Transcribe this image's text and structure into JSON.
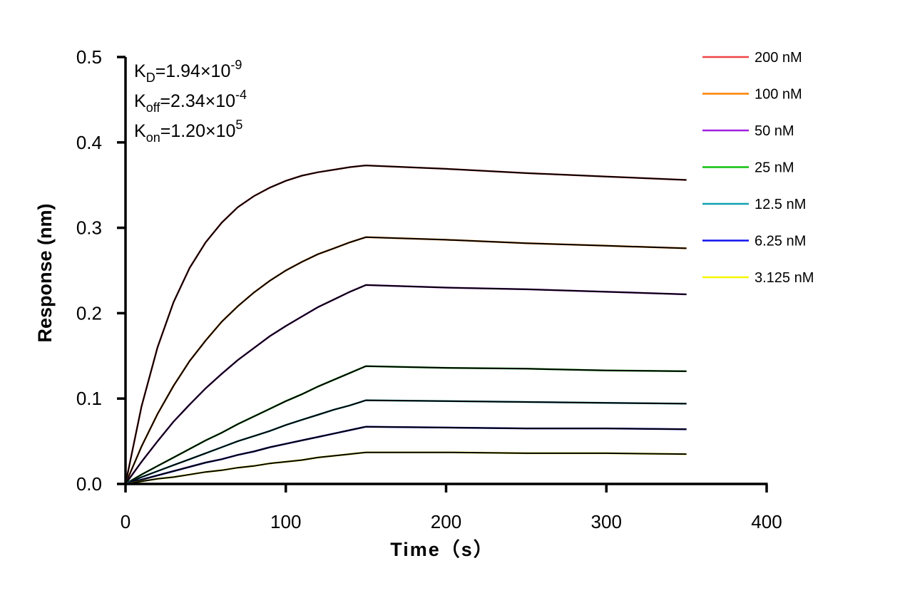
{
  "chart_data": {
    "type": "line",
    "title": "",
    "xlabel": "Time（s）",
    "ylabel": "Response (nm)",
    "xlim": [
      0,
      400
    ],
    "ylim": [
      0,
      0.5
    ],
    "x_ticks": [
      "0",
      "100",
      "200",
      "300",
      "400"
    ],
    "y_ticks": [
      "0.0",
      "0.1",
      "0.2",
      "0.3",
      "0.4",
      "0.5"
    ],
    "grid": false,
    "legend_position": "top-right",
    "fit_color": "#000000",
    "annotations": [
      {
        "base": "K",
        "sub": "D",
        "mid": "=1.94×10",
        "sup": "-9"
      },
      {
        "base": "K",
        "sub": "off",
        "mid": "=2.34×10",
        "sup": "-4"
      },
      {
        "base": "K",
        "sub": "on",
        "mid": "=1.20×10",
        "sup": "5"
      }
    ],
    "x": [
      0,
      10,
      20,
      30,
      40,
      50,
      60,
      70,
      80,
      90,
      100,
      110,
      120,
      130,
      140,
      150,
      200,
      250,
      300,
      350
    ],
    "series": [
      {
        "name": "200 nM",
        "color": "#f04545",
        "values": [
          0,
          0.091,
          0.16,
          0.213,
          0.253,
          0.283,
          0.306,
          0.324,
          0.337,
          0.347,
          0.355,
          0.361,
          0.365,
          0.368,
          0.371,
          0.373,
          0.369,
          0.364,
          0.36,
          0.356
        ]
      },
      {
        "name": "100 nM",
        "color": "#ff8000",
        "values": [
          0,
          0.044,
          0.082,
          0.115,
          0.144,
          0.168,
          0.19,
          0.208,
          0.224,
          0.238,
          0.25,
          0.26,
          0.269,
          0.276,
          0.283,
          0.289,
          0.286,
          0.282,
          0.279,
          0.276
        ]
      },
      {
        "name": "50 nM",
        "color": "#a020e0",
        "values": [
          0,
          0.026,
          0.05,
          0.073,
          0.093,
          0.112,
          0.129,
          0.145,
          0.159,
          0.173,
          0.185,
          0.196,
          0.207,
          0.216,
          0.225,
          0.233,
          0.23,
          0.228,
          0.225,
          0.222
        ]
      },
      {
        "name": "25 nM",
        "color": "#10c010",
        "values": [
          0,
          0.011,
          0.021,
          0.031,
          0.041,
          0.051,
          0.06,
          0.07,
          0.079,
          0.088,
          0.097,
          0.105,
          0.114,
          0.122,
          0.13,
          0.138,
          0.136,
          0.135,
          0.133,
          0.132
        ]
      },
      {
        "name": "12.5 nM",
        "color": "#10a0b0",
        "values": [
          0,
          0.008,
          0.015,
          0.022,
          0.029,
          0.036,
          0.043,
          0.05,
          0.056,
          0.062,
          0.069,
          0.075,
          0.081,
          0.087,
          0.092,
          0.098,
          0.097,
          0.096,
          0.095,
          0.094
        ]
      },
      {
        "name": "6.25 nM",
        "color": "#1010f0",
        "values": [
          0,
          0.005,
          0.01,
          0.015,
          0.02,
          0.025,
          0.029,
          0.034,
          0.038,
          0.043,
          0.047,
          0.051,
          0.055,
          0.059,
          0.063,
          0.067,
          0.066,
          0.065,
          0.065,
          0.064
        ]
      },
      {
        "name": "3.125 nM",
        "color": "#f5f500",
        "values": [
          0,
          0.003,
          0.006,
          0.008,
          0.011,
          0.014,
          0.016,
          0.019,
          0.021,
          0.024,
          0.026,
          0.028,
          0.031,
          0.033,
          0.035,
          0.037,
          0.037,
          0.036,
          0.036,
          0.035
        ]
      }
    ]
  }
}
